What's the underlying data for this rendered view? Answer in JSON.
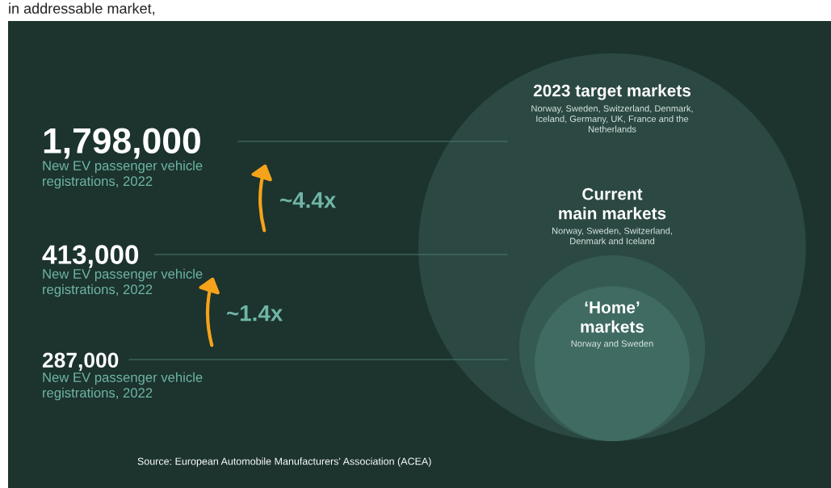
{
  "chart_data": {
    "type": "other",
    "categories": [
      "2023 target markets",
      "Current\nmain markets",
      "‘Home’\nmarkets"
    ],
    "values": [
      1798000,
      413000,
      287000
    ],
    "value_labels": [
      "1,798,000",
      "413,000",
      "287,000"
    ],
    "colors": [
      "#2b4842",
      "#355a52",
      "#3f6b62"
    ],
    "annotations": [
      "New EV passenger vehicle\nregistrations, 2022",
      "New EV passenger vehicle\nregistrations, 2022",
      "New EV passenger vehicle\nregistrations, 2022",
      "Norway, Sweden, Switzerland, Denmark,\nIceland, Germany, UK, France and the\nNetherlands",
      "Norway, Sweden, Switzerland,\nDenmark and Iceland",
      "Norway and Sweden",
      "~4.4x",
      "~1.4x",
      "Source: European Automobile Manufacturers' Association (ACEA)",
      "in addressable market,"
    ]
  }
}
